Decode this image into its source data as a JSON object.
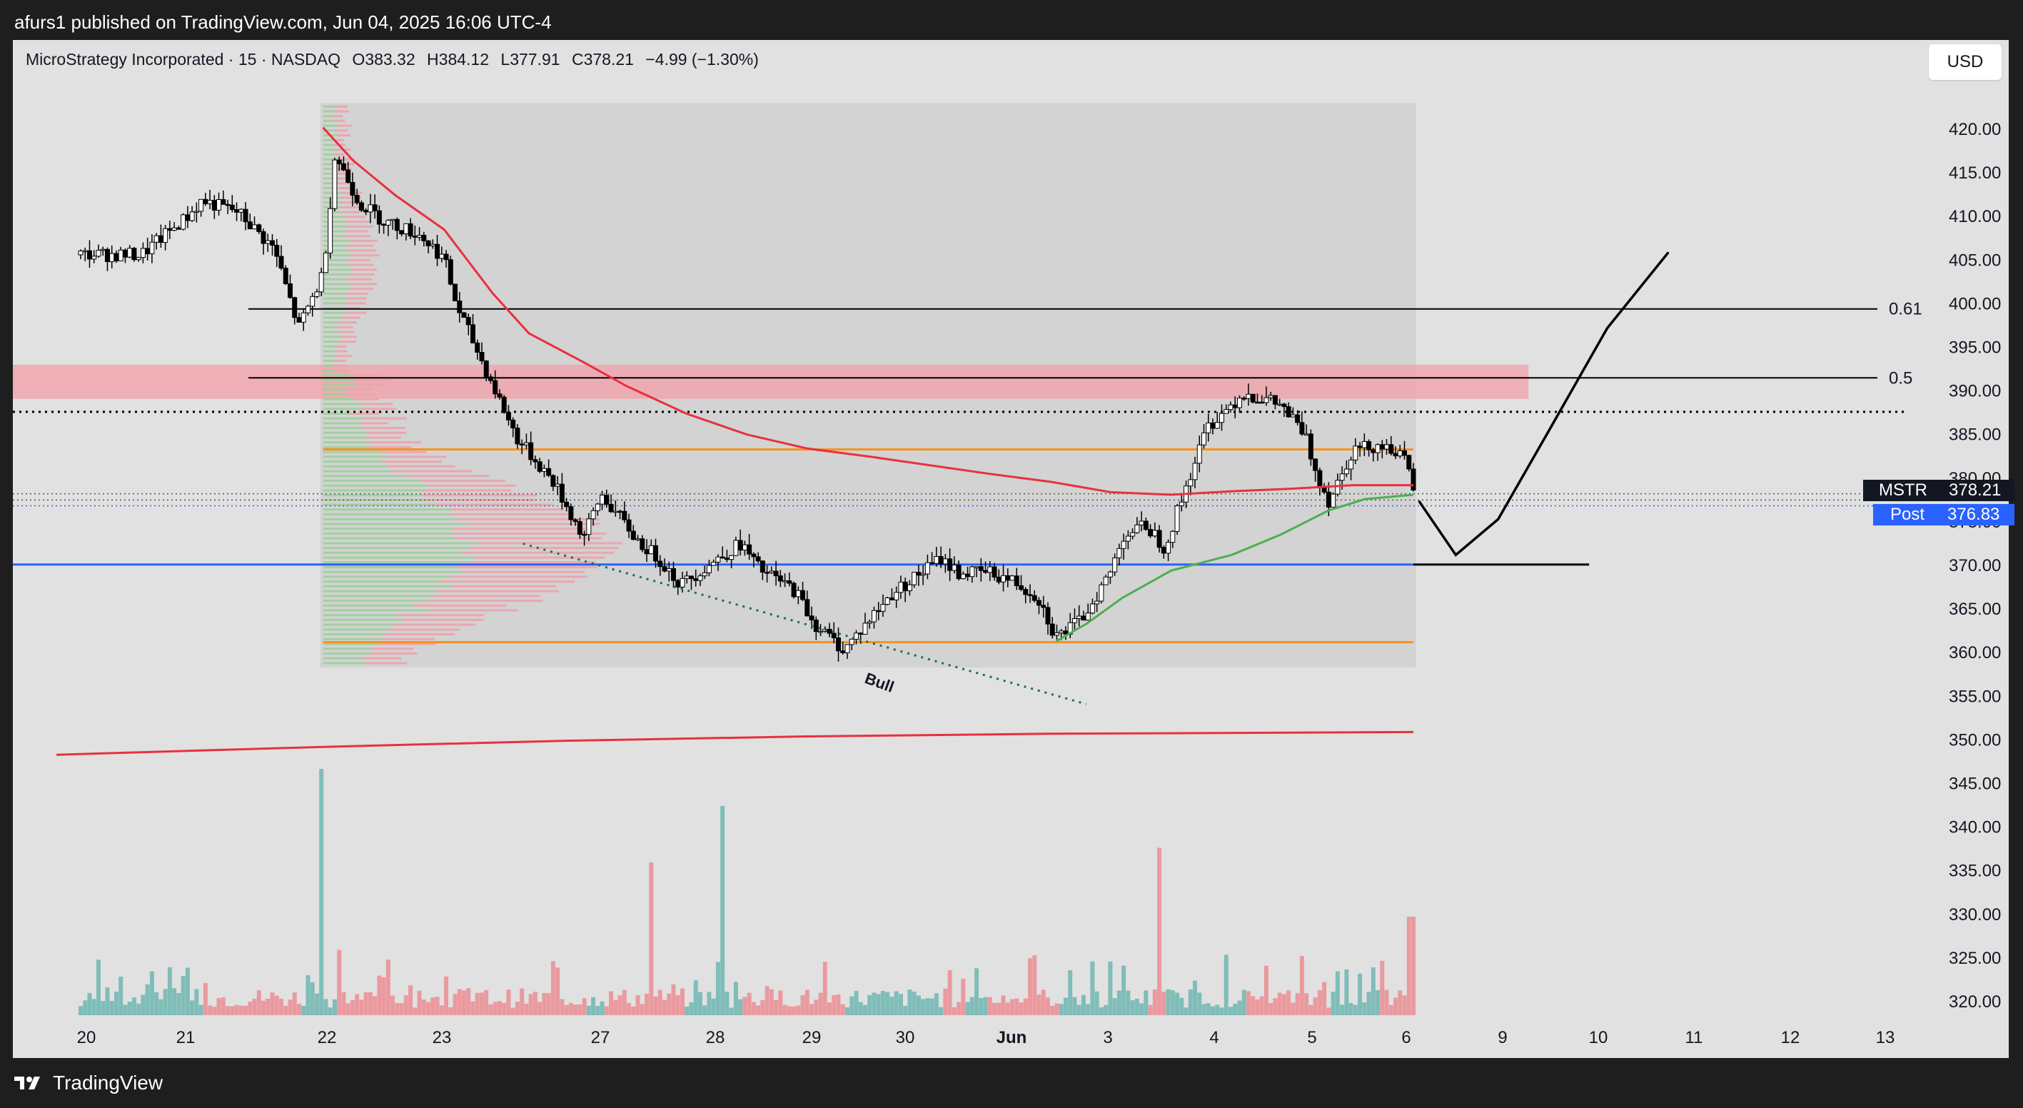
{
  "header": {
    "published_text": "afurs1 published on TradingView.com, Jun 04, 2025 16:06 UTC-4"
  },
  "legend": {
    "symbol_name": "MicroStrategy Incorporated · 15 · NASDAQ",
    "open_label": "O",
    "open": "383.32",
    "high_label": "H",
    "high": "384.12",
    "low_label": "L",
    "low": "377.91",
    "close_label": "C",
    "close": "378.21",
    "change": "−4.99 (−1.30%)"
  },
  "currency_button": "USD",
  "price_tags": {
    "symbol": "MSTR",
    "last_price": "378.21",
    "post_label": "Post",
    "post_price": "376.83"
  },
  "footer": {
    "brand": "TradingView"
  },
  "colors": {
    "background": "#e1e1e1",
    "frame": "#1e1e1e",
    "up_volume": "#7fbdb8",
    "down_volume": "#ea9a9f",
    "red_ma": "#e8303f",
    "green_ma": "#4caf50",
    "orange_level": "#f7921e",
    "blue_level": "#2962ff",
    "resistance_zone": "#f2a3ab",
    "post_tag": "#2962ff"
  },
  "chart_data": {
    "type": "candlestick",
    "symbol": "MSTR",
    "timeframe": "15",
    "exchange": "NASDAQ",
    "x_tick_labels": [
      "20",
      "21",
      "22",
      "23",
      "27",
      "28",
      "29",
      "30",
      "Jun",
      "3",
      "4",
      "5",
      "6",
      "9",
      "10",
      "11",
      "12",
      "13"
    ],
    "y_tick_labels": [
      "420.00",
      "415.00",
      "410.00",
      "405.00",
      "400.00",
      "395.00",
      "390.00",
      "385.00",
      "380.00",
      "375.00",
      "370.00",
      "365.00",
      "360.00",
      "355.00",
      "350.00",
      "345.00",
      "340.00",
      "335.00",
      "330.00",
      "325.00",
      "320.00"
    ],
    "ylim": [
      317.5,
      425
    ],
    "horizontal_levels": [
      {
        "label": "0.61",
        "price": 399.4
      },
      {
        "label": "0.5",
        "price": 391.5
      },
      {
        "label": "",
        "price": 387.6,
        "style": "dotted"
      },
      {
        "label": "",
        "price": 383.3,
        "color": "orange"
      },
      {
        "label": "",
        "price": 370.1,
        "color": "blue"
      },
      {
        "label": "",
        "price": 361.2,
        "color": "orange"
      }
    ],
    "resistance_zone": [
      389.1,
      393.0
    ],
    "volume_profile_range": [
      358.3,
      423.0
    ],
    "annotation": "Bull",
    "close_path_points": [
      [
        0.5,
        405.6
      ],
      [
        0.9,
        410.2
      ],
      [
        1.0,
        411.8
      ],
      [
        1.3,
        410.5
      ],
      [
        1.6,
        406.2
      ],
      [
        1.8,
        397.2
      ],
      [
        2.0,
        403.4
      ],
      [
        2.1,
        417.1
      ],
      [
        2.3,
        411.6
      ],
      [
        2.5,
        409.5
      ],
      [
        2.8,
        407.9
      ],
      [
        3.0,
        405.2
      ],
      [
        3.1,
        399.9
      ],
      [
        3.4,
        390.7
      ],
      [
        3.6,
        384.6
      ],
      [
        3.9,
        379.6
      ],
      [
        4.15,
        373.2
      ],
      [
        4.3,
        378.1
      ],
      [
        4.6,
        372.8
      ],
      [
        4.8,
        370.4
      ],
      [
        4.95,
        367.8
      ],
      [
        5.2,
        370.2
      ],
      [
        5.45,
        372.5
      ],
      [
        5.6,
        369.6
      ],
      [
        5.9,
        367.1
      ],
      [
        6.05,
        363.4
      ],
      [
        6.3,
        360.3
      ],
      [
        6.5,
        363.6
      ],
      [
        6.7,
        366.8
      ],
      [
        6.9,
        368.8
      ],
      [
        7.1,
        370.8
      ],
      [
        7.25,
        369.1
      ],
      [
        7.5,
        369.2
      ],
      [
        7.7,
        368.2
      ],
      [
        7.9,
        366.4
      ],
      [
        8.05,
        361.8
      ],
      [
        8.25,
        363.6
      ],
      [
        8.5,
        369.2
      ],
      [
        8.6,
        373.4
      ],
      [
        8.8,
        374.6
      ],
      [
        8.95,
        372.0
      ],
      [
        9.05,
        376.1
      ],
      [
        9.3,
        385.9
      ],
      [
        9.6,
        389.8
      ],
      [
        9.9,
        388.4
      ],
      [
        10.1,
        385.1
      ],
      [
        10.2,
        380.6
      ],
      [
        10.3,
        377.4
      ],
      [
        10.5,
        383.3
      ],
      [
        10.7,
        383.8
      ],
      [
        10.85,
        383.3
      ],
      [
        10.95,
        381.4
      ],
      [
        11.0,
        378.2
      ]
    ],
    "projection_points": [
      [
        11.05,
        377.3
      ],
      [
        11.35,
        371.2
      ],
      [
        11.7,
        375.3
      ],
      [
        12.1,
        385.0
      ],
      [
        12.6,
        397.2
      ],
      [
        13.1,
        405.8
      ]
    ],
    "red_ma_points": [
      [
        2.0,
        420.2
      ],
      [
        2.25,
        416.4
      ],
      [
        2.6,
        412.4
      ],
      [
        3.0,
        408.5
      ],
      [
        3.4,
        401.2
      ],
      [
        3.7,
        396.6
      ],
      [
        4.15,
        393.3
      ],
      [
        4.5,
        390.6
      ],
      [
        5.0,
        387.4
      ],
      [
        5.5,
        385.0
      ],
      [
        6.0,
        383.4
      ],
      [
        6.5,
        382.5
      ],
      [
        7.0,
        381.5
      ],
      [
        7.5,
        380.5
      ],
      [
        8.0,
        379.6
      ],
      [
        8.5,
        378.4
      ],
      [
        9.0,
        378.1
      ],
      [
        9.5,
        378.5
      ],
      [
        10.0,
        378.8
      ],
      [
        10.5,
        379.2
      ],
      [
        11.0,
        379.2
      ]
    ],
    "green_ma_points": [
      [
        8.05,
        361.3
      ],
      [
        8.3,
        363.3
      ],
      [
        8.6,
        366.3
      ],
      [
        9.0,
        369.4
      ],
      [
        9.5,
        371.2
      ],
      [
        9.9,
        373.5
      ],
      [
        10.3,
        376.3
      ],
      [
        10.6,
        377.6
      ],
      [
        11.0,
        378.1
      ]
    ],
    "long_ma_points": [
      [
        -0.2,
        348.3
      ],
      [
        2.0,
        349.2
      ],
      [
        4.0,
        349.9
      ],
      [
        6.0,
        350.4
      ],
      [
        8.0,
        350.7
      ],
      [
        11.0,
        350.9
      ]
    ],
    "volume_bars_index_range": [
      0,
      11
    ],
    "volume_highlights": [
      {
        "x": 2.0,
        "value": 1.0,
        "dir": "up"
      },
      {
        "x": 5.3,
        "value": 0.85,
        "dir": "down"
      },
      {
        "x": 4.7,
        "value": 0.62,
        "dir": "down"
      },
      {
        "x": 8.9,
        "value": 0.68,
        "dir": "up"
      },
      {
        "x": 10.98,
        "value": 0.4,
        "dir": "down"
      }
    ]
  }
}
